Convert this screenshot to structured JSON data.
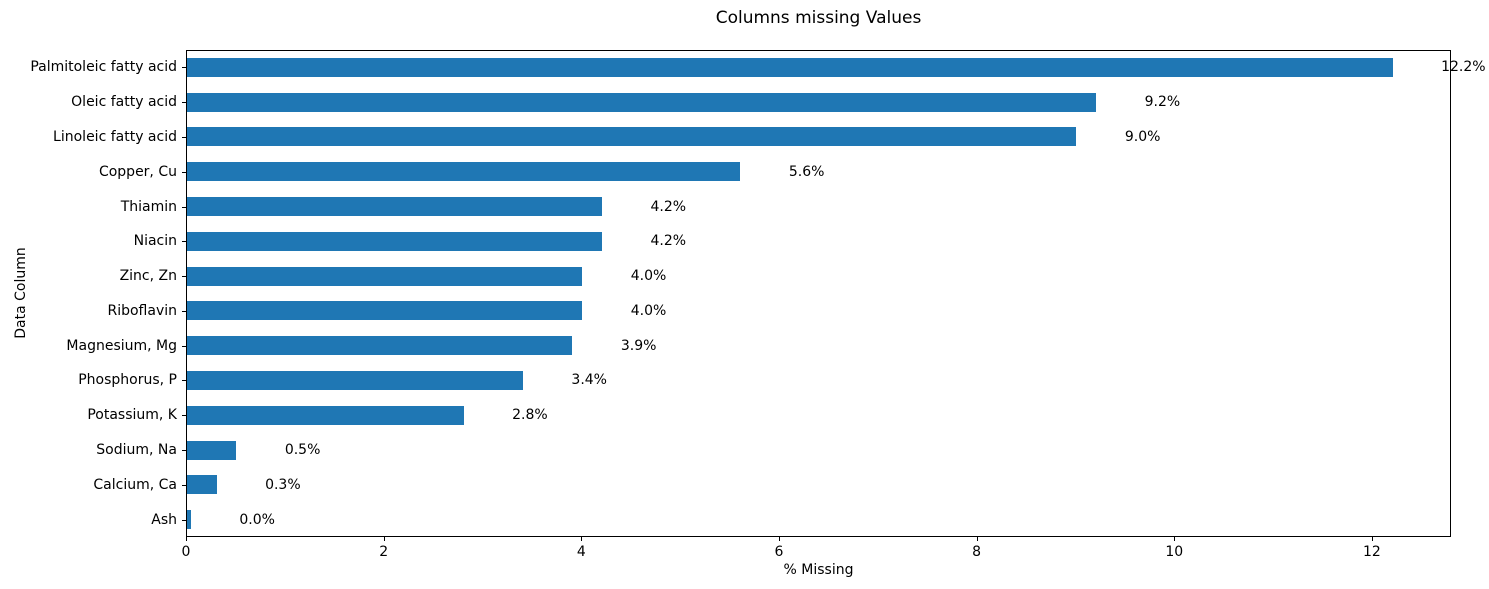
{
  "chart_data": {
    "type": "bar",
    "orientation": "horizontal",
    "title": "Columns missing Values",
    "xlabel": "% Missing",
    "ylabel": "Data Column",
    "categories": [
      "Palmitoleic fatty acid",
      "Oleic fatty acid",
      "Linoleic fatty acid",
      "Copper, Cu",
      "Thiamin",
      "Niacin",
      "Zinc, Zn",
      "Riboflavin",
      "Magnesium, Mg",
      "Phosphorus, P",
      "Potassium, K",
      "Sodium, Na",
      "Calcium, Ca",
      "Ash"
    ],
    "values": [
      12.2,
      9.2,
      9.0,
      5.6,
      4.2,
      4.2,
      4.0,
      4.0,
      3.9,
      3.4,
      2.8,
      0.5,
      0.3,
      0.04
    ],
    "value_labels": [
      "12.2%",
      "9.2%",
      "9.0%",
      "5.6%",
      "4.2%",
      "4.2%",
      "4.0%",
      "4.0%",
      "3.9%",
      "3.4%",
      "2.8%",
      "0.5%",
      "0.3%",
      "0.0%"
    ],
    "xlim": [
      0,
      12.8
    ],
    "xticks": [
      0,
      2,
      4,
      6,
      8,
      10,
      12
    ],
    "bar_color": "#1f77b4",
    "grid": false,
    "legend": "none"
  }
}
